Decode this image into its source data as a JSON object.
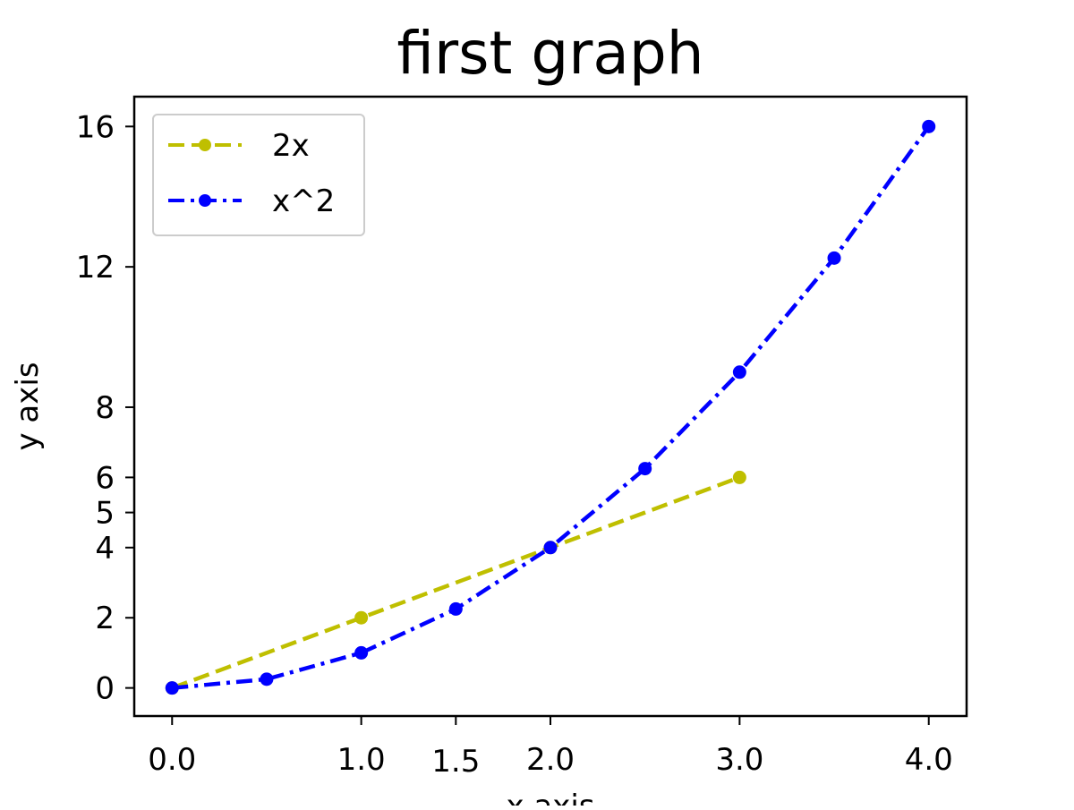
{
  "chart_data": {
    "type": "line",
    "title": "first graph",
    "xlabel": "x axis",
    "ylabel": "y axis",
    "xlim": [
      -0.2,
      4.2
    ],
    "ylim": [
      -0.8,
      16.85
    ],
    "x_ticks": [
      0.0,
      1.0,
      1.5,
      2.0,
      3.0,
      4.0
    ],
    "x_tick_labels": [
      "0.0",
      "1.0",
      "1.5",
      "2.0",
      "3.0",
      "4.0"
    ],
    "y_ticks": [
      0,
      2,
      4,
      5,
      6,
      8,
      12,
      16
    ],
    "y_tick_labels": [
      "0",
      "2",
      "4",
      "5",
      "6",
      "8",
      "12",
      "16"
    ],
    "grid": false,
    "legend_position": "top-left",
    "series": [
      {
        "name": "2x",
        "color": "#bfbf00",
        "line_style": "dashed",
        "marker": "circle",
        "x": [
          0,
          1,
          2,
          3
        ],
        "y": [
          0,
          2,
          4,
          6
        ]
      },
      {
        "name": "x^2",
        "color": "#0000ff",
        "line_style": "dashdot",
        "marker": "circle",
        "x": [
          0,
          0.5,
          1,
          1.5,
          2,
          2.5,
          3,
          3.5,
          4
        ],
        "y": [
          0,
          0.25,
          1,
          2.25,
          4,
          6.25,
          9,
          12.25,
          16
        ]
      }
    ]
  }
}
